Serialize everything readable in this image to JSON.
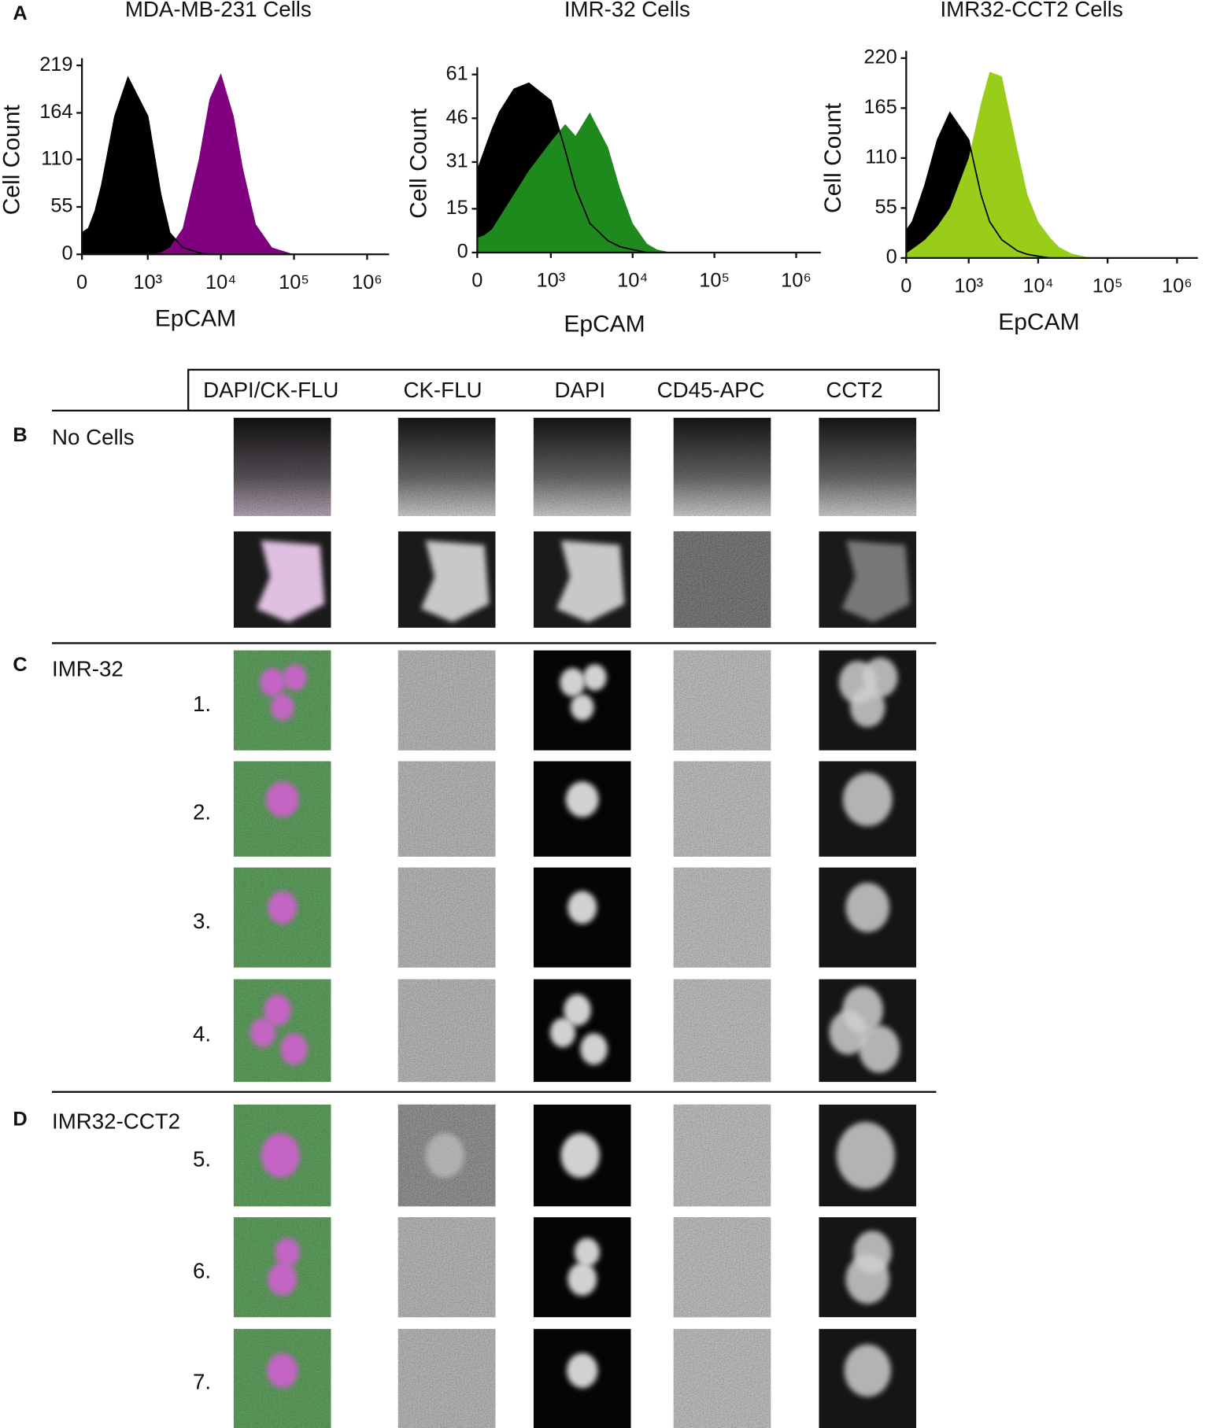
{
  "figure": {
    "panel_labels": [
      "A",
      "B",
      "C",
      "D"
    ],
    "column_headers": [
      "DAPI/CK-FLU",
      "CK-FLU",
      "DAPI",
      "CD45-APC",
      "CCT2"
    ],
    "groups": [
      {
        "label": "No Cells"
      },
      {
        "label": "IMR-32",
        "items": [
          "1.",
          "2.",
          "3.",
          "4."
        ]
      },
      {
        "label": "IMR32-CCT2",
        "items": [
          "5.",
          "6.",
          "7."
        ]
      }
    ]
  },
  "chart_data": [
    {
      "type": "area",
      "title": "MDA-MB-231 Cells",
      "xlabel": "EpCAM",
      "ylabel": "Cell Count",
      "xscale": "biexponential",
      "x": [
        0,
        100,
        200,
        300,
        500,
        700,
        1000,
        1500,
        2000,
        3000,
        5000,
        7000,
        10000,
        15000,
        20000,
        30000,
        50000,
        100000
      ],
      "xlim": [
        0,
        2000000
      ],
      "xticks": [
        0,
        {
          "value": 1000,
          "label": "10³"
        },
        {
          "value": 10000,
          "label": "10⁴"
        },
        {
          "value": 100000,
          "label": "10⁵"
        },
        {
          "value": 1000000,
          "label": "10⁶"
        }
      ],
      "ylim": [
        0,
        219
      ],
      "yticks": [
        0,
        55,
        110,
        164,
        219
      ],
      "outline_series": 0,
      "series": [
        {
          "color": "#000000",
          "values": [
            25,
            30,
            50,
            80,
            160,
            205,
            160,
            70,
            25,
            8,
            2,
            0,
            0,
            0,
            0,
            0,
            0,
            0
          ]
        },
        {
          "color": "#800080",
          "values": [
            0,
            0,
            0,
            0,
            0,
            0,
            0,
            2,
            8,
            30,
            110,
            180,
            210,
            160,
            100,
            35,
            8,
            0
          ]
        }
      ]
    },
    {
      "type": "area",
      "title": "IMR-32 Cells",
      "xlabel": "EpCAM",
      "ylabel": "Cell Count",
      "xscale": "biexponential",
      "x": [
        0,
        100,
        200,
        300,
        500,
        700,
        1000,
        1500,
        2000,
        3000,
        5000,
        7000,
        10000,
        15000,
        20000,
        30000,
        50000,
        100000
      ],
      "xlim": [
        0,
        2000000
      ],
      "xticks": [
        0,
        {
          "value": 1000,
          "label": "10³"
        },
        {
          "value": 10000,
          "label": "10⁴"
        },
        {
          "value": 100000,
          "label": "10⁵"
        },
        {
          "value": 1000000,
          "label": "10⁶"
        }
      ],
      "ylim": [
        0,
        61
      ],
      "yticks": [
        0,
        15,
        31,
        46,
        61
      ],
      "outline_series": 0,
      "series": [
        {
          "color": "#000000",
          "values": [
            28,
            35,
            42,
            48,
            56,
            58,
            52,
            35,
            22,
            10,
            4,
            2,
            1,
            0,
            0,
            0,
            0,
            0
          ]
        },
        {
          "color": "#1e8a1e",
          "values": [
            5,
            6,
            8,
            12,
            20,
            28,
            38,
            44,
            40,
            48,
            36,
            22,
            10,
            3,
            1,
            0,
            0,
            0
          ]
        }
      ]
    },
    {
      "type": "area",
      "title": "IMR32-CCT2 Cells",
      "xlabel": "EpCAM",
      "ylabel": "Cell Count",
      "xscale": "biexponential",
      "x": [
        0,
        100,
        200,
        300,
        500,
        700,
        1000,
        1500,
        2000,
        3000,
        5000,
        7000,
        10000,
        15000,
        20000,
        30000,
        50000,
        100000
      ],
      "xlim": [
        0,
        2000000
      ],
      "xticks": [
        0,
        {
          "value": 1000,
          "label": "10³"
        },
        {
          "value": 10000,
          "label": "10⁴"
        },
        {
          "value": 100000,
          "label": "10⁵"
        },
        {
          "value": 1000000,
          "label": "10⁶"
        }
      ],
      "ylim": [
        0,
        220
      ],
      "yticks": [
        0,
        55,
        110,
        165,
        220
      ],
      "outline_series": 0,
      "series": [
        {
          "color": "#000000",
          "values": [
            30,
            40,
            60,
            80,
            130,
            160,
            130,
            70,
            40,
            20,
            8,
            4,
            2,
            0,
            0,
            0,
            0,
            0
          ]
        },
        {
          "color": "#9acd1a",
          "values": [
            5,
            10,
            15,
            20,
            35,
            55,
            110,
            170,
            205,
            200,
            120,
            70,
            40,
            22,
            12,
            5,
            1,
            0
          ]
        }
      ]
    }
  ]
}
